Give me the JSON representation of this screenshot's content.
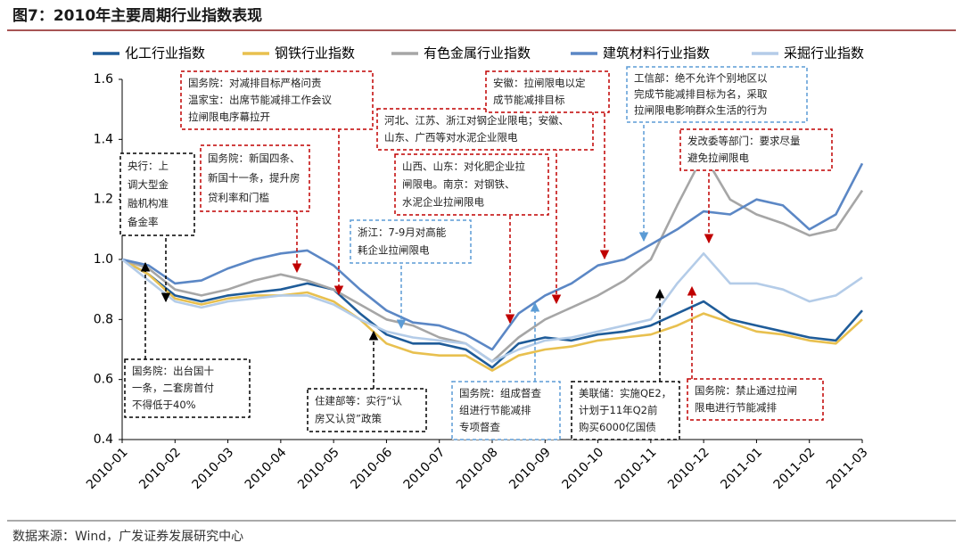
{
  "chart_data": {
    "type": "line",
    "title": "图7：2010年主要周期行业指数表现",
    "source": "数据来源：Wind，广发证券发展研究中心",
    "x": [
      0,
      0.5,
      1,
      1.5,
      2,
      2.5,
      3,
      3.5,
      4,
      4.5,
      5,
      5.5,
      6,
      6.5,
      7,
      7.5,
      8,
      8.5,
      9,
      9.5,
      10,
      10.5,
      11,
      11.5,
      12,
      12.5,
      13,
      13.5,
      14
    ],
    "xlim": [
      0,
      14
    ],
    "xticks": [
      {
        "value": 0,
        "label": "2010-01"
      },
      {
        "value": 1,
        "label": "2010-02"
      },
      {
        "value": 2,
        "label": "2010-03"
      },
      {
        "value": 3,
        "label": "2010-04"
      },
      {
        "value": 4,
        "label": "2010-05"
      },
      {
        "value": 5,
        "label": "2010-06"
      },
      {
        "value": 6,
        "label": "2010-07"
      },
      {
        "value": 7,
        "label": "2010-08"
      },
      {
        "value": 8,
        "label": "2010-09"
      },
      {
        "value": 9,
        "label": "2010-10"
      },
      {
        "value": 10,
        "label": "2010-11"
      },
      {
        "value": 11,
        "label": "2010-12"
      },
      {
        "value": 12,
        "label": "2011-01"
      },
      {
        "value": 13,
        "label": "2011-02"
      },
      {
        "value": 14,
        "label": "2011-03"
      }
    ],
    "ylim": [
      0.4,
      1.6
    ],
    "yticks": [
      0.4,
      0.6,
      0.8,
      {
        "value": 1,
        "label": "1.0"
      },
      1.2,
      1.4,
      1.6
    ],
    "grid": false,
    "legend": "top",
    "series": [
      {
        "name": "化工行业指数",
        "color": "#1f5c99",
        "values": [
          1.0,
          0.95,
          0.88,
          0.86,
          0.88,
          0.89,
          0.9,
          0.92,
          0.9,
          0.82,
          0.75,
          0.72,
          0.72,
          0.7,
          0.64,
          0.72,
          0.74,
          0.73,
          0.75,
          0.76,
          0.78,
          0.82,
          0.86,
          0.8,
          0.78,
          0.76,
          0.74,
          0.73,
          0.83
        ]
      },
      {
        "name": "钢铁行业指数",
        "color": "#e8c04f",
        "values": [
          1.0,
          0.95,
          0.87,
          0.85,
          0.87,
          0.88,
          0.88,
          0.89,
          0.86,
          0.8,
          0.72,
          0.69,
          0.68,
          0.68,
          0.63,
          0.68,
          0.7,
          0.71,
          0.73,
          0.74,
          0.75,
          0.78,
          0.82,
          0.79,
          0.76,
          0.75,
          0.73,
          0.72,
          0.8
        ]
      },
      {
        "name": "有色金属行业指数",
        "color": "#a6a6a6",
        "values": [
          1.0,
          0.97,
          0.9,
          0.88,
          0.9,
          0.93,
          0.95,
          0.93,
          0.9,
          0.85,
          0.8,
          0.78,
          0.74,
          0.72,
          0.66,
          0.74,
          0.8,
          0.84,
          0.88,
          0.93,
          1.0,
          1.18,
          1.35,
          1.2,
          1.15,
          1.12,
          1.08,
          1.1,
          1.23
        ]
      },
      {
        "name": "建筑材料行业指数",
        "color": "#5b87c5",
        "values": [
          1.0,
          0.98,
          0.92,
          0.93,
          0.97,
          1.0,
          1.02,
          1.03,
          0.98,
          0.9,
          0.83,
          0.79,
          0.78,
          0.75,
          0.7,
          0.82,
          0.88,
          0.92,
          0.98,
          1.0,
          1.05,
          1.1,
          1.16,
          1.15,
          1.2,
          1.18,
          1.1,
          1.15,
          1.32
        ]
      },
      {
        "name": "采掘行业指数",
        "color": "#b4cce8",
        "values": [
          1.0,
          0.93,
          0.86,
          0.84,
          0.86,
          0.87,
          0.88,
          0.88,
          0.85,
          0.8,
          0.76,
          0.74,
          0.73,
          0.72,
          0.66,
          0.7,
          0.73,
          0.74,
          0.76,
          0.78,
          0.8,
          0.92,
          1.02,
          0.92,
          0.92,
          0.9,
          0.86,
          0.88,
          0.94
        ]
      }
    ],
    "annotations": [
      {
        "color": "#c00000",
        "lines": [
          "国务院：对减排目标严格问责",
          "温家宝：出席节能减排工作会议",
          "拉闸限电序幕拉开"
        ]
      },
      {
        "color": "#c00000",
        "lines": [
          "国务院：新国四条、",
          "新国十一条，提升房",
          "贷利率和门槛"
        ]
      },
      {
        "color": "#000000",
        "lines": [
          "央行：上",
          "调大型金",
          "融机构准",
          "备金率"
        ]
      },
      {
        "color": "#000000",
        "lines": [
          "国务院：出台国十",
          "一条，二套房首付",
          "不得低于40%"
        ]
      },
      {
        "color": "#000000",
        "lines": [
          "住建部等：实行“认",
          "房又认贷”政策"
        ]
      },
      {
        "color": "#5b9bd5",
        "lines": [
          "浙江：7-9月对高能",
          "耗企业拉闸限电"
        ]
      },
      {
        "color": "#c00000",
        "lines": [
          "河北、江苏、浙江对钢企业限电；安徽、",
          "山东、广西等对水泥企业限电"
        ]
      },
      {
        "color": "#c00000",
        "lines": [
          "山西、山东：对化肥企业拉",
          "闸限电。南京：对钢铁、",
          "水泥企业拉闸限电"
        ]
      },
      {
        "color": "#c00000",
        "lines": [
          "安徽：拉闸限电以定",
          "成节能减排目标"
        ]
      },
      {
        "color": "#5b9bd5",
        "lines": [
          "工信部：绝不允许个别地区以",
          "完成节能减排目标为名，采取",
          "拉闸限电影响群众生活的行为"
        ]
      },
      {
        "color": "#5b9bd5",
        "lines": [
          "国务院：组成督查",
          "组进行节能减排",
          "专项督查"
        ]
      },
      {
        "color": "#000000",
        "lines": [
          "美联储：实施QE2，",
          "计划于11年Q2前",
          "购买6000亿国债"
        ]
      },
      {
        "color": "#c00000",
        "lines": [
          "发改委等部门：要求尽量",
          "避免拉闸限电"
        ]
      },
      {
        "color": "#c00000",
        "lines": [
          "国务院：禁止通过拉闸",
          "限电进行节能减排"
        ]
      }
    ]
  }
}
